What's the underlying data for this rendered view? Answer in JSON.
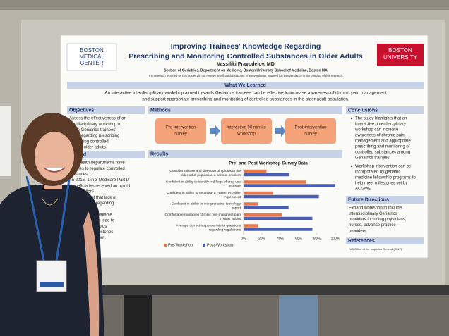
{
  "poster": {
    "logo_left": [
      "BOSTON",
      "MEDICAL",
      "CENTER"
    ],
    "logo_right": [
      "BOSTON",
      "UNIVERSITY"
    ],
    "title": [
      "Improving Trainees' Knowledge Regarding",
      "Prescribing and Monitoring Controlled Substances in Older Adults"
    ],
    "author": "Vassiliki Pravodelov, MD",
    "affiliation": "Section of Geriatrics, Department on Medicine, Boston University School of Medicine, Boston MA",
    "disclaimer": "The research reported on this poster did not receive any financial support. The investigator retained full independence in the conduct of this research.",
    "learned": {
      "heading": "What We Learned",
      "lines": [
        "An interactive interdisciplinary workshop aimed towards Geriatrics trainees can be effective to increase awareness of chronic pain management",
        "and support appropriate prescribing and monitoring of controlled substances in the older adult population."
      ]
    },
    "objectives": {
      "heading": "Objectives",
      "lines": [
        "Assess the effectiveness of an",
        "nterdisciplinary workshop to",
        "prove Geriatrics trainees'",
        "edge regarding prescribing",
        "monitoring controlled",
        "nces in older adults"
      ]
    },
    "background": {
      "heading": "ground",
      "lines": [
        "blic health departments have",
        "delines to regulate controlled",
        "bstances",
        "In 2016, 1 in 3 Medicare Part D",
        "beneficiaries received an opioid",
        "prescription¹",
        "data suggest that lack of",
        "ler education regarding",
        "ns and lack of",
        "es regarding available",
        "ng interventions lead to",
        "escribing of opioids",
        "ME has set milestones",
        "pain management",
        "escribing for",
        "trainees"
      ]
    },
    "methods": {
      "heading": "Methods",
      "steps": [
        [
          "Pre-intervention",
          "survey"
        ],
        [
          "Interactive 90 minute",
          "workshop"
        ],
        [
          "Post-intervention",
          "survey"
        ]
      ]
    },
    "results": {
      "heading": "Results"
    },
    "chart": {
      "type": "bar",
      "orientation": "horizontal",
      "title": "Pre- and Post-Workshop Survey Data",
      "categories": [
        [
          "Consider misuse and diversion of opioids in the",
          "older adult population a serious problem"
        ],
        [
          "Confident in ability to identify red flags of drug use",
          "disorder"
        ],
        [
          "Confident in ability to negotiate a Patient Provider",
          "Agreement"
        ],
        [
          "Confident in ability to interpret urine toxicology",
          "report"
        ],
        [
          "Comfortable managing chronic non-malignant pain",
          "in older adults"
        ],
        [
          "Average correct response rate to questions",
          "regarding regulations"
        ]
      ],
      "series": [
        {
          "name": "Pre-Workshop",
          "color": "#e8794a",
          "values": [
            25,
            68,
            32,
            16,
            42,
            16
          ]
        },
        {
          "name": "Post-Workshop",
          "color": "#4a5fb3",
          "values": [
            50,
            100,
            82,
            49,
            75,
            75
          ]
        }
      ],
      "xlim": [
        0,
        100
      ],
      "xticks": [
        {
          "value": 0,
          "label": "0%"
        },
        {
          "value": 20,
          "label": "20%"
        },
        {
          "value": 40,
          "label": "40%"
        },
        {
          "value": 60,
          "label": "60%"
        },
        {
          "value": 80,
          "label": "80%"
        },
        {
          "value": 100,
          "label": "100%"
        }
      ],
      "legend": "bottom"
    },
    "conclusions": {
      "heading": "Conclusions",
      "items": [
        [
          "The study highlights that an",
          "interactive, interdisciplinary",
          "workshop can increase",
          "awareness of chronic pain",
          "management and appropriate",
          "prescribing and monitoring of",
          "controlled substances among",
          "Geriatrics trainees"
        ],
        [
          "Workshop intervention can be",
          "incorporated by geriatric",
          "medicine fellowship programs to",
          "help meet milestones set by",
          "ACGME"
        ]
      ]
    },
    "future": {
      "heading": "Future Directions",
      "lines": [
        "Expand workshop to include",
        "interdisciplinary Geriatrics",
        "providers including physicians,",
        "nurses, advance practice",
        "providers"
      ]
    },
    "references": {
      "heading": "References",
      "lines": [
        "¹US Office of the Inspector General (2017)"
      ]
    }
  }
}
